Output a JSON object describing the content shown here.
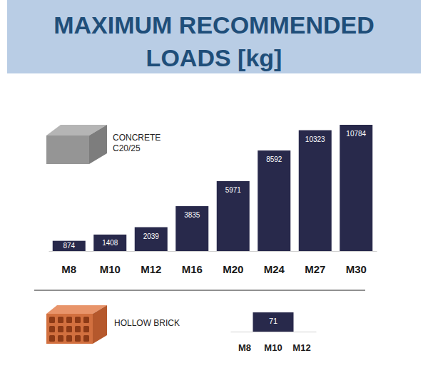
{
  "header": {
    "title": "MAXIMUM RECOMMENDED LOADS [kg]"
  },
  "chart_data": [
    {
      "type": "bar",
      "title": "CONCRETE C20/25",
      "categories": [
        "M8",
        "M10",
        "M12",
        "M16",
        "M20",
        "M24",
        "M27",
        "M30"
      ],
      "values": [
        874,
        1408,
        2039,
        3835,
        5971,
        8592,
        10323,
        10784
      ],
      "color": "#28294b",
      "data_labels": true,
      "tick_labels": "x"
    },
    {
      "type": "bar",
      "title": "HOLLOW BRICK",
      "categories": [
        "M8",
        "M10",
        "M12"
      ],
      "values": [
        null,
        71,
        null
      ],
      "color": "#28294b",
      "data_labels": true,
      "tick_labels": "x"
    }
  ]
}
